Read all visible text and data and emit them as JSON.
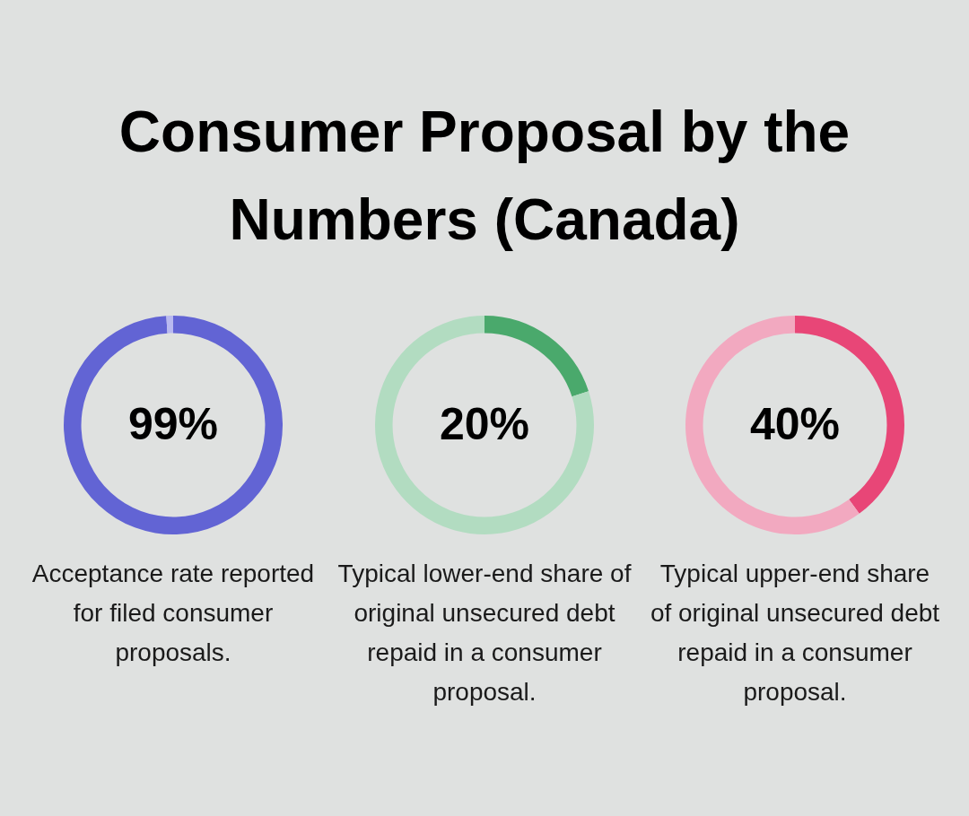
{
  "chart_data": [
    {
      "type": "donut",
      "title": "Consumer Proposal by the Numbers (Canada)",
      "categories": [
        null,
        null
      ],
      "values": [
        99,
        1
      ],
      "colors": [
        "#6264d4",
        "#b9b9f0"
      ],
      "value_labels": [
        "99%",
        null
      ],
      "annotations": [
        "Acceptance rate reported for filed consumer proposals."
      ]
    },
    {
      "type": "donut",
      "categories": [
        null,
        null
      ],
      "values": [
        20,
        80
      ],
      "colors": [
        "#4aa96c",
        "#b2dcc1"
      ],
      "value_labels": [
        "20%",
        null
      ],
      "annotations": [
        "Typical lower-end share of original unsecured debt repaid in a consumer proposal."
      ]
    },
    {
      "type": "donut",
      "categories": [
        null,
        null
      ],
      "values": [
        40,
        60
      ],
      "colors": [
        "#e84677",
        "#f2a9c0"
      ],
      "value_labels": [
        "40%",
        null
      ],
      "annotations": [
        "Typical upper-end share of original unsecured debt repaid in a consumer proposal."
      ]
    }
  ]
}
